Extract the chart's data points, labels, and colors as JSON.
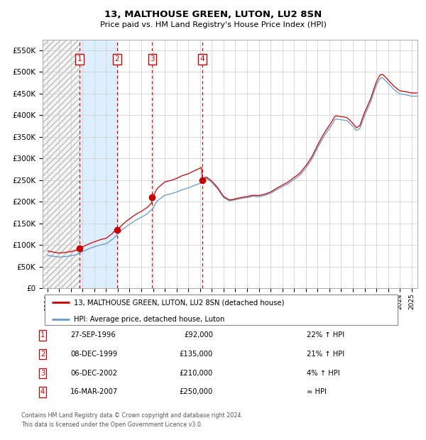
{
  "title": "13, MALTHOUSE GREEN, LUTON, LU2 8SN",
  "subtitle": "Price paid vs. HM Land Registry's House Price Index (HPI)",
  "sales": [
    {
      "num": 1,
      "date_float": 1996.747,
      "price": 92000,
      "label": "27-SEP-1996",
      "pct": "22% ↑ HPI"
    },
    {
      "num": 2,
      "date_float": 1999.936,
      "price": 135000,
      "label": "08-DEC-1999",
      "pct": "21% ↑ HPI"
    },
    {
      "num": 3,
      "date_float": 2002.931,
      "price": 210000,
      "label": "06-DEC-2002",
      "pct": "4% ↑ HPI"
    },
    {
      "num": 4,
      "date_float": 2007.204,
      "price": 250000,
      "label": "16-MAR-2007",
      "pct": "≈ HPI"
    }
  ],
  "price_labels": [
    "£92,000",
    "£135,000",
    "£210,000",
    "£250,000"
  ],
  "legend_line1": "13, MALTHOUSE GREEN, LUTON, LU2 8SN (detached house)",
  "legend_line2": "HPI: Average price, detached house, Luton",
  "footer1": "Contains HM Land Registry data © Crown copyright and database right 2024.",
  "footer2": "This data is licensed under the Open Government Licence v3.0.",
  "hpi_color": "#6699cc",
  "price_color": "#cc0000",
  "dot_color": "#cc0000",
  "vline_color": "#cc0000",
  "shade_color": "#ddeeff",
  "grid_color": "#cccccc",
  "ylim": [
    0,
    575000
  ],
  "yticks": [
    0,
    50000,
    100000,
    150000,
    200000,
    250000,
    300000,
    350000,
    400000,
    450000,
    500000,
    550000
  ],
  "xlim_left": 1993.6,
  "xlim_right": 2025.5,
  "hpi_anchors_x": [
    1994,
    1994.5,
    1995,
    1995.5,
    1996,
    1996.5,
    1997,
    1997.5,
    1998,
    1998.5,
    1999,
    1999.5,
    2000,
    2000.5,
    2001,
    2001.5,
    2002,
    2002.5,
    2003,
    2003.3,
    2003.5,
    2004,
    2004.5,
    2005,
    2005.5,
    2006,
    2006.5,
    2007,
    2007.3,
    2007.5,
    2008,
    2008.5,
    2009,
    2009.5,
    2010,
    2010.5,
    2011,
    2011.5,
    2012,
    2012.5,
    2013,
    2013.5,
    2014,
    2014.5,
    2015,
    2015.5,
    2016,
    2016.5,
    2017,
    2017.5,
    2018,
    2018.3,
    2018.5,
    2019,
    2019.5,
    2020,
    2020.3,
    2020.6,
    2021,
    2021.5,
    2022,
    2022.3,
    2022.5,
    2023,
    2023.5,
    2024,
    2024.5,
    2025
  ],
  "hpi_anchors_y": [
    76000,
    74000,
    72000,
    73000,
    75000,
    78000,
    85000,
    91000,
    96000,
    100000,
    103000,
    112000,
    126000,
    138000,
    148000,
    157000,
    164000,
    172000,
    185000,
    200000,
    205000,
    215000,
    218000,
    222000,
    228000,
    232000,
    238000,
    243000,
    248000,
    255000,
    245000,
    230000,
    210000,
    202000,
    205000,
    208000,
    210000,
    213000,
    212000,
    215000,
    220000,
    228000,
    235000,
    242000,
    252000,
    262000,
    278000,
    298000,
    325000,
    350000,
    370000,
    382000,
    392000,
    390000,
    388000,
    375000,
    365000,
    370000,
    400000,
    430000,
    470000,
    485000,
    488000,
    475000,
    460000,
    450000,
    448000,
    445000
  ]
}
